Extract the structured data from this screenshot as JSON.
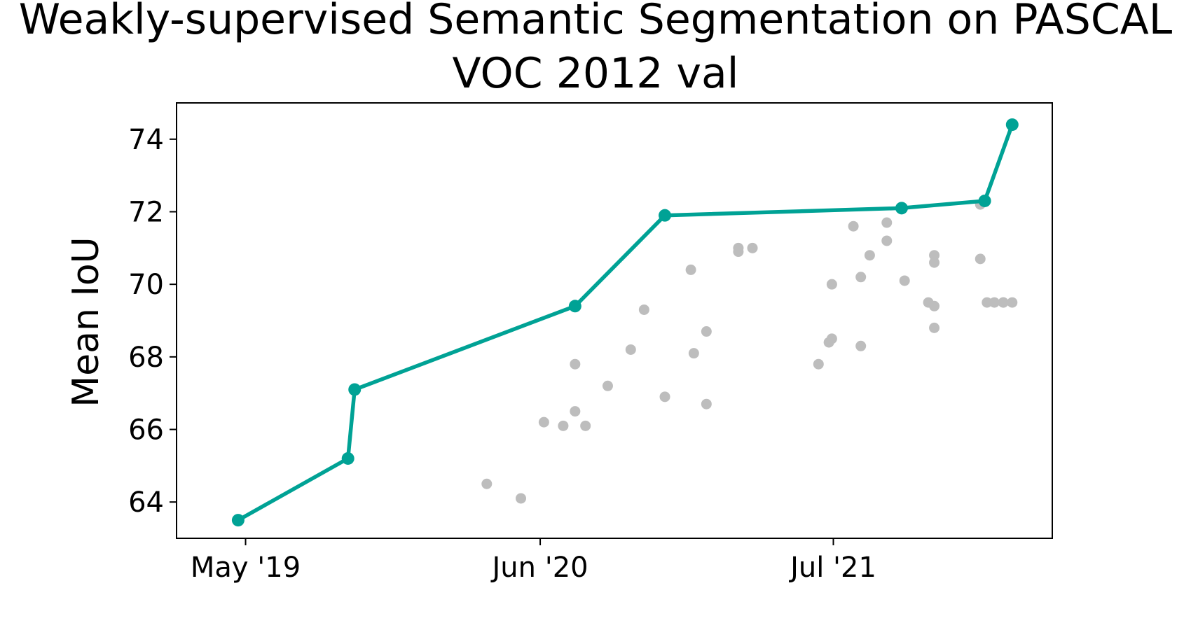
{
  "chart_data": {
    "type": "scatter",
    "title_line1": "Weakly-supervised Semantic Segmentation on PASCAL",
    "title_line2": "VOC 2012 val",
    "xlabel": "",
    "ylabel": "Mean IoU",
    "x_tick_labels": [
      "May '19",
      "Jun '20",
      "Jul '21"
    ],
    "x_ticks": [
      "2019-05-01",
      "2020-06-01",
      "2021-07-01"
    ],
    "xlim": [
      "2019-01-28",
      "2022-04-22"
    ],
    "y_ticks": [
      64,
      66,
      68,
      70,
      72,
      74
    ],
    "ylim": [
      63,
      75
    ],
    "grid": false,
    "colors": {
      "sota": "#00a295",
      "other": "#bdbdbd",
      "axis": "#000000"
    },
    "series": [
      {
        "role": "state-of-the-art",
        "x": [
          "2019-04-21",
          "2019-09-16",
          "2019-09-25",
          "2020-07-18",
          "2020-11-16",
          "2021-10-01",
          "2022-01-21",
          "2022-02-27"
        ],
        "y": [
          63.5,
          65.2,
          67.1,
          69.4,
          71.9,
          72.1,
          72.3,
          74.4
        ]
      },
      {
        "role": "other",
        "x": [
          "2020-03-21",
          "2020-05-06",
          "2020-06-06",
          "2020-07-02",
          "2020-07-18",
          "2020-07-18",
          "2020-08-01",
          "2020-08-31",
          "2020-10-01",
          "2020-10-19",
          "2020-11-16",
          "2020-12-21",
          "2020-12-25",
          "2021-01-11",
          "2021-01-11",
          "2021-02-23",
          "2021-02-23",
          "2021-03-14",
          "2021-06-11",
          "2021-06-25",
          "2021-06-29",
          "2021-06-29",
          "2021-07-28",
          "2021-08-07",
          "2021-08-07",
          "2021-08-19",
          "2021-09-11",
          "2021-09-11",
          "2021-10-05",
          "2021-11-06",
          "2021-11-14",
          "2021-11-14",
          "2021-11-14",
          "2021-11-14",
          "2022-01-15",
          "2022-01-15",
          "2022-01-24",
          "2022-02-03",
          "2022-02-15",
          "2022-02-15",
          "2022-02-27"
        ],
        "y": [
          64.5,
          64.1,
          66.2,
          66.1,
          67.8,
          66.5,
          66.1,
          67.2,
          68.2,
          69.3,
          66.9,
          70.4,
          68.1,
          66.7,
          68.7,
          71.0,
          70.9,
          71.0,
          67.8,
          68.4,
          70.0,
          68.5,
          71.6,
          70.2,
          68.3,
          70.8,
          71.7,
          71.2,
          70.1,
          69.5,
          69.4,
          70.8,
          70.6,
          68.8,
          72.2,
          70.7,
          69.5,
          69.5,
          69.5,
          69.5,
          69.5
        ]
      }
    ]
  }
}
